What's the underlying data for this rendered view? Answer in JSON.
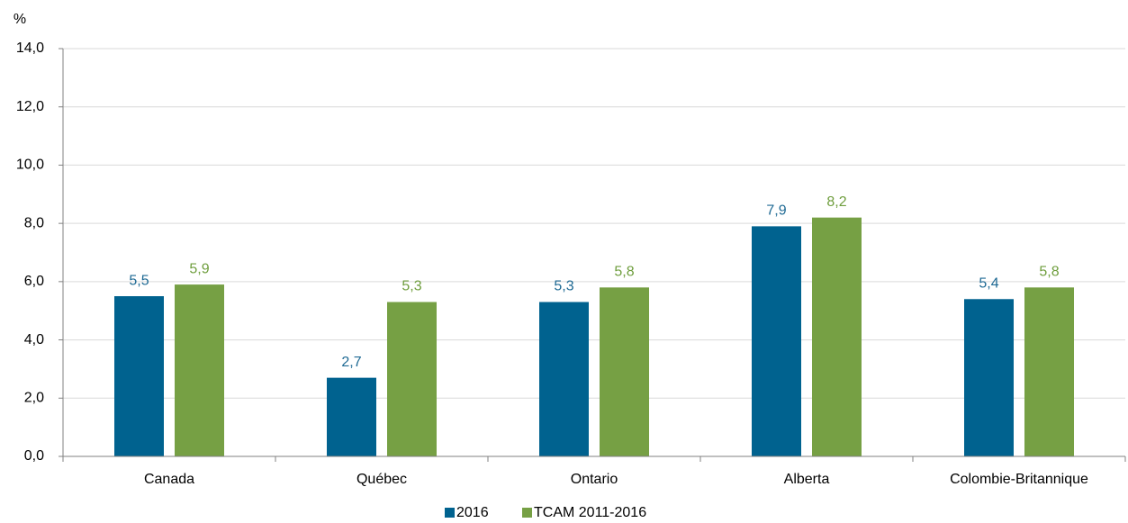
{
  "chart_data": {
    "type": "bar",
    "y_label": "%",
    "categories": [
      "Canada",
      "Québec",
      "Ontario",
      "Alberta",
      "Colombie-Britannique"
    ],
    "series": [
      {
        "name": "2016",
        "color": "#00628f",
        "label_color": "#1f6a94",
        "values": [
          5.5,
          2.7,
          5.3,
          7.9,
          5.4
        ],
        "value_labels": [
          "5,5",
          "2,7",
          "5,3",
          "7,9",
          "5,4"
        ]
      },
      {
        "name": "TCAM 2011-2016",
        "color": "#76a044",
        "label_color": "#6f9e3e",
        "values": [
          5.9,
          5.3,
          5.8,
          8.2,
          5.8
        ],
        "value_labels": [
          "5,9",
          "5,3",
          "5,8",
          "8,2",
          "5,8"
        ]
      }
    ],
    "ylim": [
      0,
      14
    ],
    "yticks": [
      {
        "value": 0,
        "label": "0,0"
      },
      {
        "value": 2,
        "label": "2,0"
      },
      {
        "value": 4,
        "label": "4,0"
      },
      {
        "value": 6,
        "label": "6,0"
      },
      {
        "value": 8,
        "label": "8,0"
      },
      {
        "value": 10,
        "label": "10,0"
      },
      {
        "value": 12,
        "label": "12,0"
      },
      {
        "value": 14,
        "label": "14,0"
      }
    ],
    "grid": true,
    "legend": "bottom"
  }
}
